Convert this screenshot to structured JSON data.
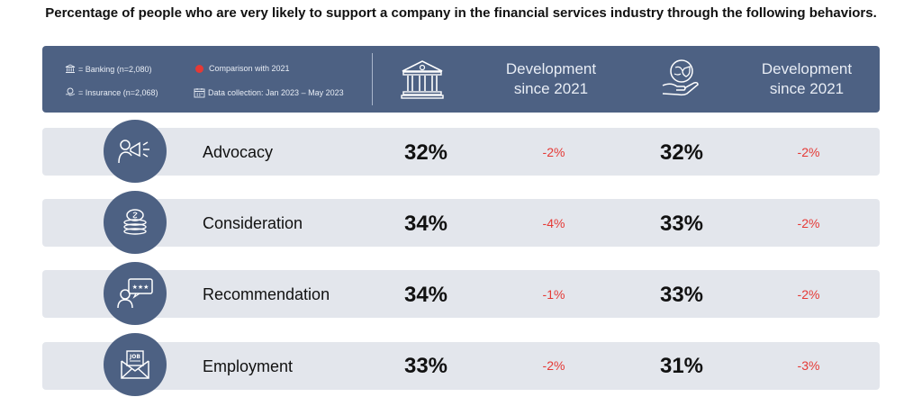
{
  "title": "Percentage of people who are very likely to support a company in the financial services industry through the following behaviors.",
  "legend": {
    "banking": "= Banking (n=2,080)",
    "insurance": "= Insurance (n=2,068)",
    "comparison": "Comparison with 2021",
    "collection": "Data collection: Jan 2023 – May 2023"
  },
  "columns": {
    "banking_icon": "bank-icon",
    "insurance_icon": "insurance-icon",
    "dev_line1": "Development",
    "dev_line2": "since 2021"
  },
  "colors": {
    "header": "#4d6183",
    "row": "#e3e6ec",
    "negative": "#e53935"
  },
  "chart_data": {
    "type": "table",
    "categories": [
      "Advocacy",
      "Consideration",
      "Recommendation",
      "Employment"
    ],
    "series": [
      {
        "name": "Banking (n=2,080)",
        "values": [
          32,
          34,
          34,
          33
        ],
        "labels": [
          "32%",
          "34%",
          "34%",
          "33%"
        ]
      },
      {
        "name": "Banking development since 2021",
        "values": [
          -2,
          -4,
          -1,
          -2
        ],
        "labels": [
          "-2%",
          "-4%",
          "-1%",
          "-2%"
        ]
      },
      {
        "name": "Insurance (n=2,068)",
        "values": [
          32,
          33,
          33,
          31
        ],
        "labels": [
          "32%",
          "33%",
          "33%",
          "31%"
        ]
      },
      {
        "name": "Insurance development since 2021",
        "values": [
          -2,
          -2,
          -2,
          -3
        ],
        "labels": [
          "-2%",
          "-2%",
          "-2%",
          "-3%"
        ]
      }
    ],
    "row_icons": [
      "megaphone-person-icon",
      "coins-icon",
      "review-person-icon",
      "job-envelope-icon"
    ]
  }
}
